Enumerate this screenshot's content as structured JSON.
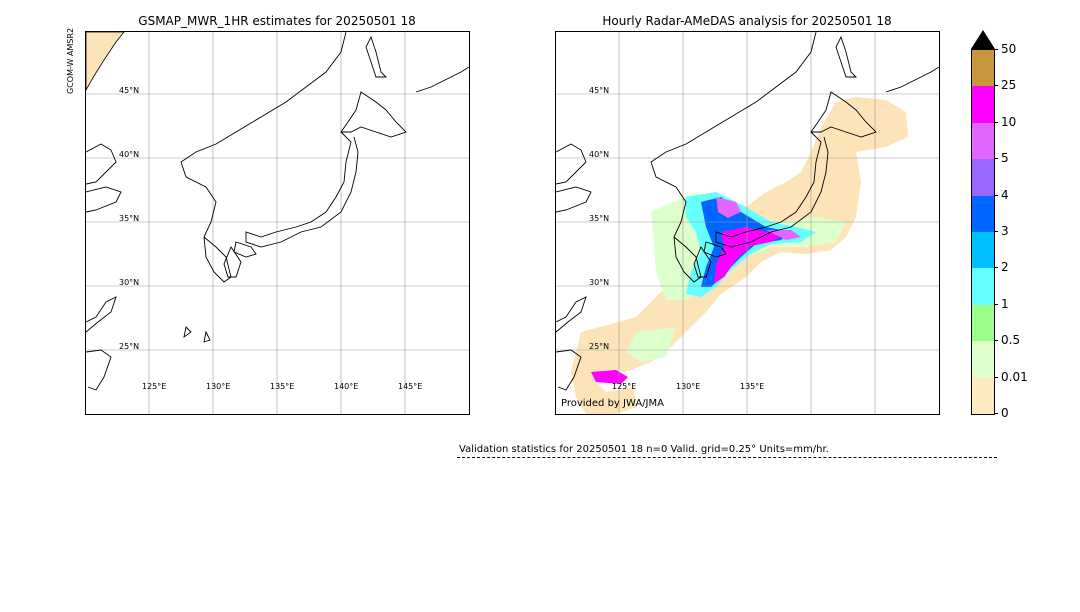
{
  "left_panel": {
    "title": "GSMAP_MWR_1HR estimates for 20250501 18",
    "sat_label": "GCOM-W AMSR2",
    "lat_labels": [
      "45°N",
      "40°N",
      "35°N",
      "30°N",
      "25°N"
    ],
    "lon_labels": [
      "125°E",
      "130°E",
      "135°E",
      "140°E",
      "145°E"
    ]
  },
  "right_panel": {
    "title": "Hourly Radar-AMeDAS analysis for 20250501 18",
    "lat_labels": [
      "45°N",
      "40°N",
      "35°N",
      "30°N",
      "25°N"
    ],
    "lon_labels": [
      "125°E",
      "130°E",
      "135°E"
    ],
    "credit": "Provided by JWA/JMA"
  },
  "colorbar": {
    "ticks": [
      "50",
      "25",
      "10",
      "5",
      "4",
      "3",
      "2",
      "1",
      "0.5",
      "0.01",
      "0"
    ],
    "colors": [
      "#c8963c",
      "#ff00ff",
      "#e066ff",
      "#9966ff",
      "#0066ff",
      "#00bfff",
      "#66ffff",
      "#99ff88",
      "#ddffcc",
      "#ffe9bf"
    ],
    "extend_color": "#000000"
  },
  "colors": {
    "land_mask": "#fce4b8",
    "grid": "#999999",
    "coast": "#000000"
  },
  "validation": {
    "text": "Validation statistics for 20250501 18  n=0 Valid. grid=0.25° Units=mm/hr."
  }
}
